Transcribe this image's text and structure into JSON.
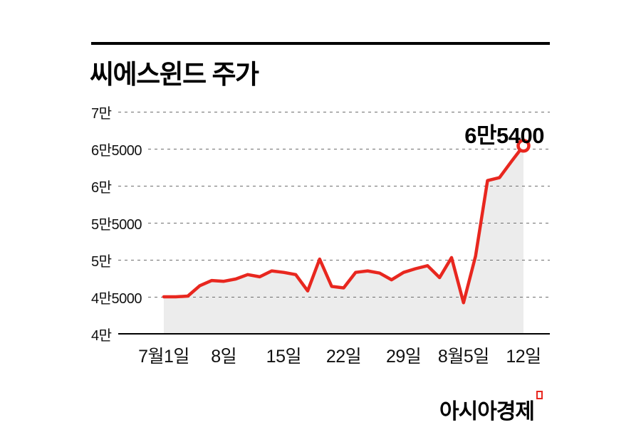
{
  "title": "씨에스윈드 주가",
  "chart_data": {
    "type": "line",
    "title": "씨에스윈드 주가",
    "series_name": "씨에스윈드 주가 (KRW)",
    "x_tick_labels": [
      "7월1일",
      "8일",
      "15일",
      "22일",
      "29일",
      "8월5일",
      "12일"
    ],
    "y_tick_labels": [
      "7만",
      "6만5000",
      "6만",
      "5만5000",
      "5만",
      "4만5000",
      "4만"
    ],
    "y_tick_values": [
      70000,
      65000,
      60000,
      55000,
      50000,
      45000,
      40000
    ],
    "ylim": [
      40000,
      70000
    ],
    "values": [
      45000,
      45000,
      45100,
      46500,
      47200,
      47100,
      47400,
      48000,
      47700,
      48500,
      48300,
      48000,
      45800,
      50100,
      46400,
      46200,
      48300,
      48500,
      48200,
      47300,
      48300,
      48800,
      49200,
      47600,
      50300,
      44200,
      50500,
      60700,
      61100,
      63300,
      65400
    ],
    "last_value": 65400,
    "last_value_label": "6만5400",
    "line_color": "#e8271f",
    "area_color": "#ececec",
    "marker": "open-circle",
    "grid": "dashed-horizontal",
    "legend": "none"
  },
  "footer": {
    "logo_text": "아시아경제"
  }
}
